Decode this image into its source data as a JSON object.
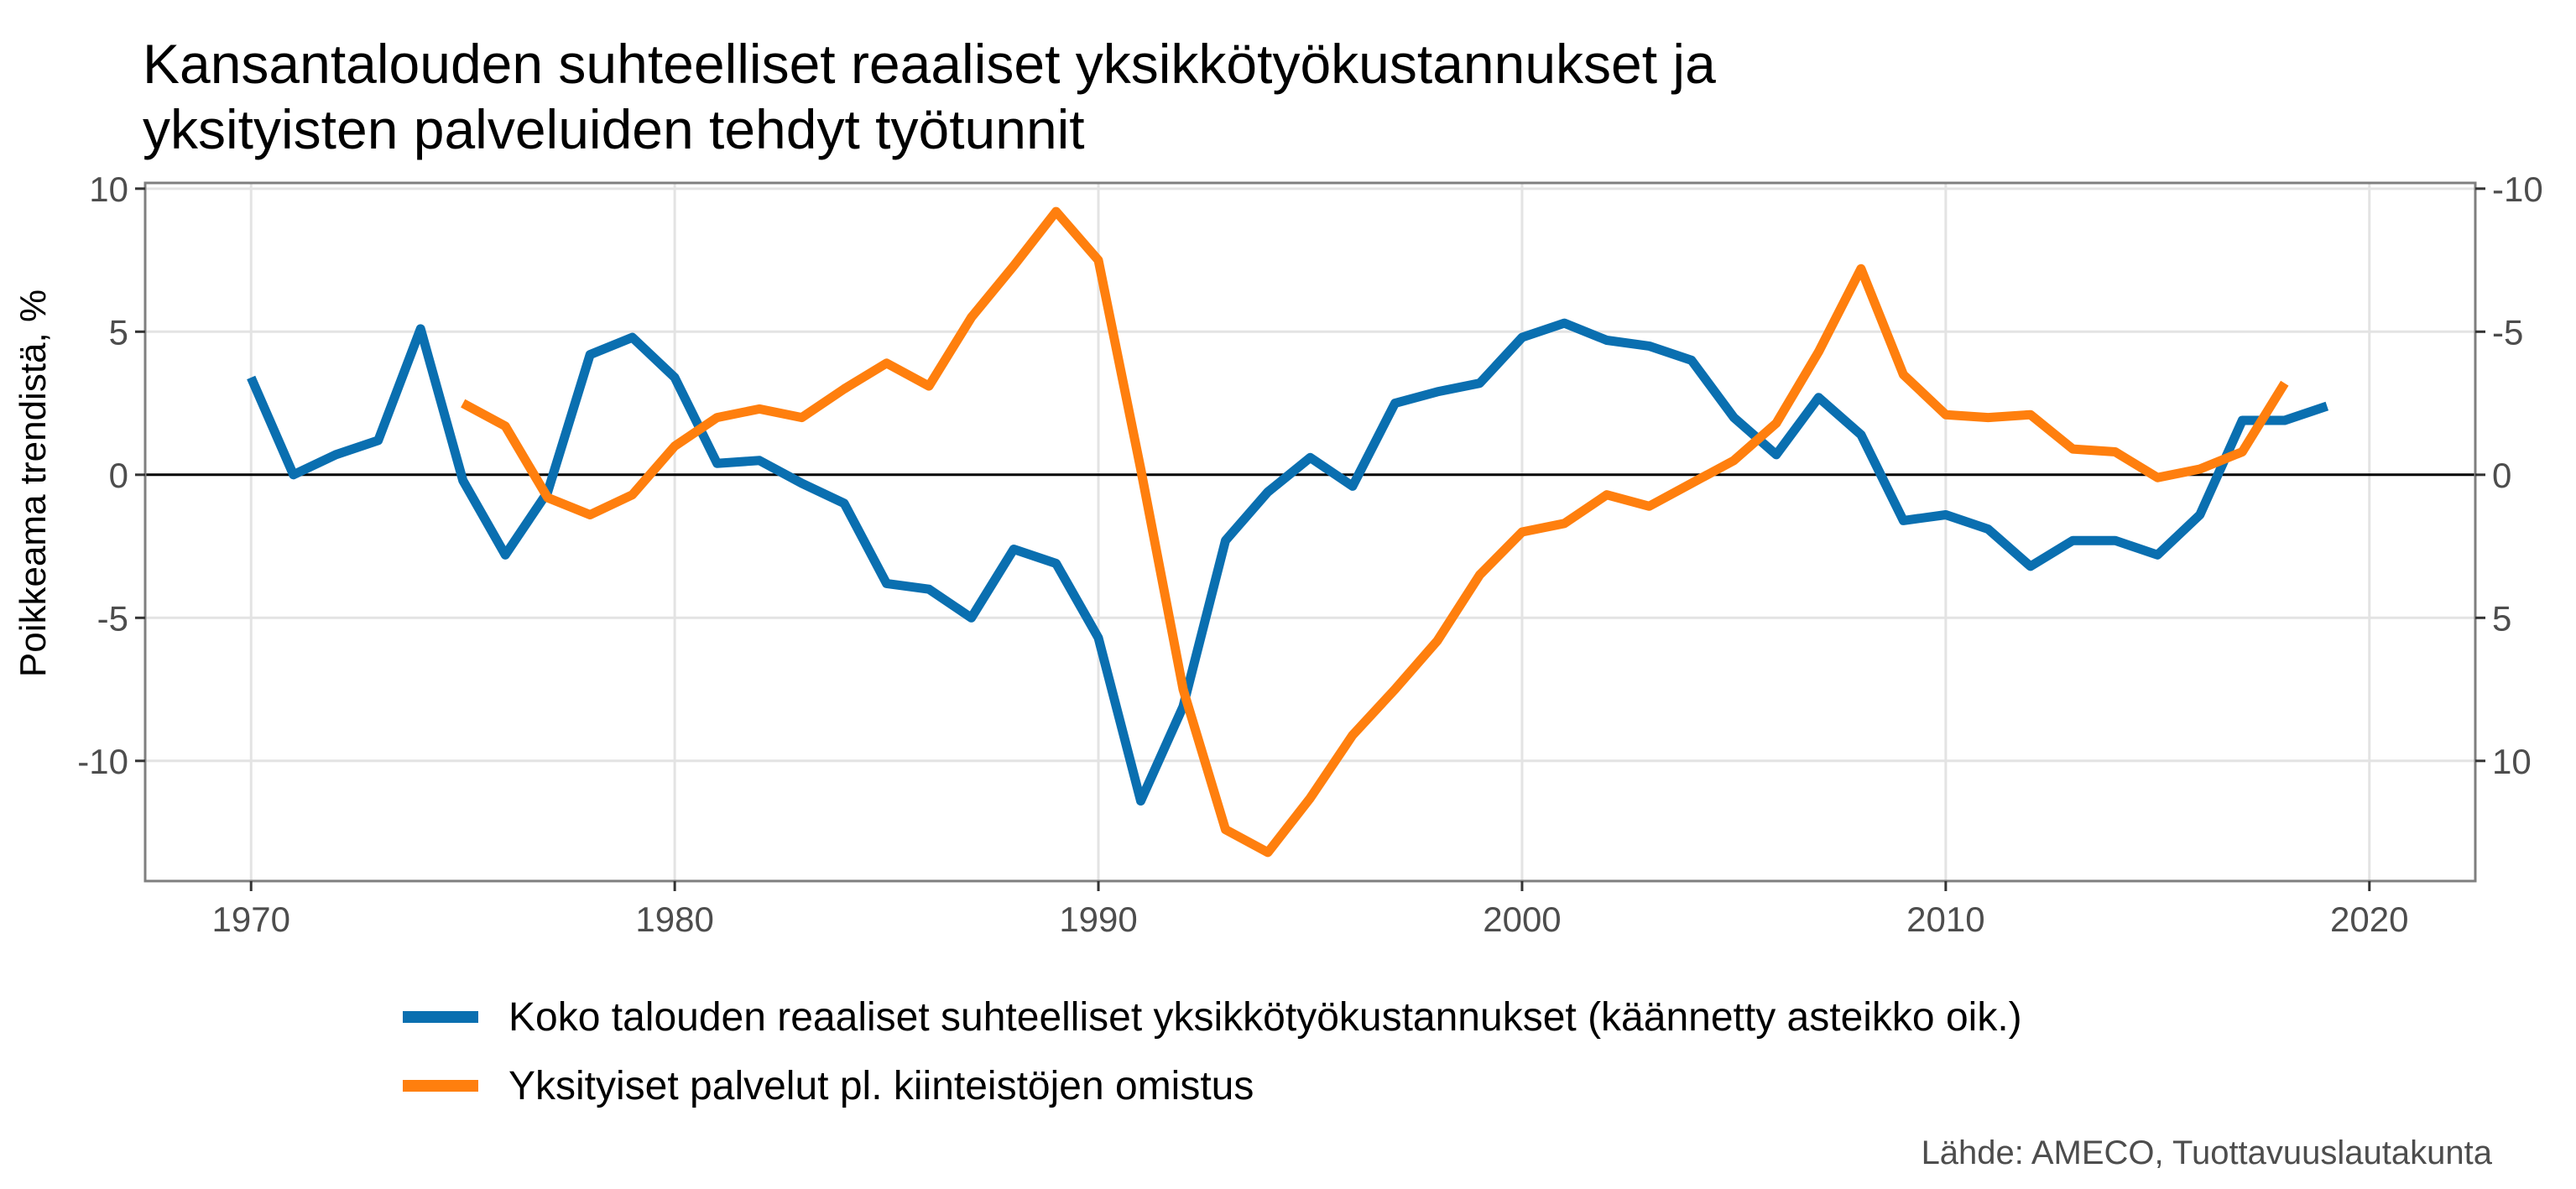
{
  "chart_data": {
    "type": "line",
    "title_lines": [
      "Kansantalouden suhteelliset reaaliset yksikkötyökustannukset ja",
      "yksityisten palveluiden tehdyt työtunnit"
    ],
    "ylabel": "Poikkeama trendistä, %",
    "xlabel": "",
    "xlim": [
      1967.5,
      2022.5
    ],
    "ylim": [
      -14.2,
      10.2
    ],
    "x_ticks": [
      1970,
      1980,
      1990,
      2000,
      2010,
      2020
    ],
    "x_tick_labels": [
      "1970",
      "1980",
      "1990",
      "2000",
      "2010",
      "2020"
    ],
    "y_ticks": [
      10,
      5,
      0,
      -5,
      -10
    ],
    "y_tick_labels": [
      "10",
      "5",
      "0",
      "-5",
      "-10"
    ],
    "y2_tick_labels": [
      "-10",
      "-5",
      "0",
      "5",
      "10"
    ],
    "grid": true,
    "zero_line": true,
    "legend_position": "bottom",
    "source": "Lähde: AMECO, Tuottavuuslautakunta",
    "series": [
      {
        "name": "Koko talouden reaaliset suhteelliset yksikkötyökustannukset (käännetty asteikko oik.)",
        "color": "#0a6fb0",
        "axis": "right (inverted)",
        "x": [
          1970,
          1971,
          1972,
          1973,
          1974,
          1975,
          1976,
          1977,
          1978,
          1979,
          1980,
          1981,
          1982,
          1983,
          1984,
          1985,
          1986,
          1987,
          1988,
          1989,
          1990,
          1991,
          1992,
          1993,
          1994,
          1995,
          1996,
          1997,
          1998,
          1999,
          2000,
          2001,
          2002,
          2003,
          2004,
          2005,
          2006,
          2007,
          2008,
          2009,
          2010,
          2011,
          2012,
          2013,
          2014,
          2015,
          2016,
          2017,
          2018,
          2019
        ],
        "values": [
          -3.4,
          0.0,
          -0.7,
          -1.2,
          -5.1,
          0.2,
          2.8,
          0.6,
          -4.2,
          -4.8,
          -3.4,
          -0.4,
          -0.5,
          0.3,
          1.0,
          3.8,
          4.0,
          5.0,
          2.6,
          3.1,
          5.7,
          11.4,
          8.1,
          2.3,
          0.6,
          -0.6,
          0.4,
          -2.5,
          -2.9,
          -3.2,
          -4.8,
          -5.3,
          -4.7,
          -4.5,
          -4.0,
          -2.0,
          -0.7,
          -2.7,
          -1.4,
          1.6,
          1.4,
          1.9,
          3.2,
          2.3,
          2.3,
          2.8,
          1.4,
          -1.9,
          -1.9,
          -2.4
        ]
      },
      {
        "name": "Yksityiset palvelut pl. kiinteistöjen omistus",
        "color": "#ff7f0e",
        "axis": "left",
        "x": [
          1975,
          1976,
          1977,
          1978,
          1979,
          1980,
          1981,
          1982,
          1983,
          1984,
          1985,
          1986,
          1987,
          1988,
          1989,
          1990,
          1991,
          1992,
          1993,
          1994,
          1995,
          1996,
          1997,
          1998,
          1999,
          2000,
          2001,
          2002,
          2003,
          2004,
          2005,
          2006,
          2007,
          2008,
          2009,
          2010,
          2011,
          2012,
          2013,
          2014,
          2015,
          2016,
          2017,
          2018
        ],
        "values": [
          2.5,
          1.7,
          -0.8,
          -1.4,
          -0.7,
          1.0,
          2.0,
          2.3,
          2.0,
          3.0,
          3.9,
          3.1,
          5.5,
          7.3,
          9.2,
          7.5,
          0.2,
          -7.5,
          -12.4,
          -13.2,
          -11.3,
          -9.1,
          -7.5,
          -5.8,
          -3.5,
          -2.0,
          -1.7,
          -0.7,
          -1.1,
          -0.3,
          0.5,
          1.8,
          4.3,
          7.2,
          3.5,
          2.1,
          2.0,
          2.1,
          0.9,
          0.8,
          -0.1,
          0.2,
          0.8,
          3.2
        ]
      }
    ]
  }
}
